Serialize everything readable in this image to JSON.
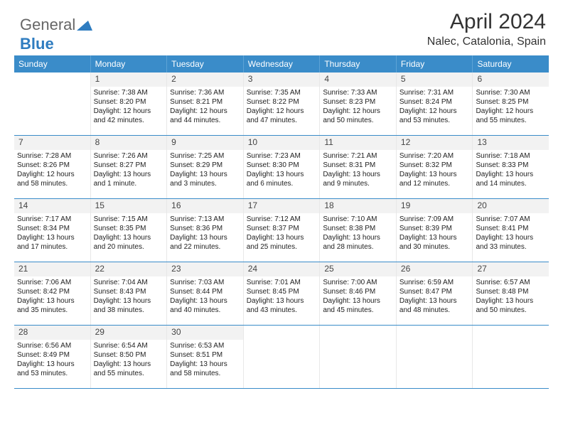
{
  "logo": {
    "part1": "General",
    "part2": "Blue"
  },
  "title": "April 2024",
  "location": "Nalec, Catalonia, Spain",
  "day_header_bg": "#3a8cc9",
  "day_header_fg": "#ffffff",
  "divider_color": "#3a8cc9",
  "days": [
    "Sunday",
    "Monday",
    "Tuesday",
    "Wednesday",
    "Thursday",
    "Friday",
    "Saturday"
  ],
  "weeks": [
    [
      null,
      {
        "n": "1",
        "sr": "Sunrise: 7:38 AM",
        "ss": "Sunset: 8:20 PM",
        "dl": "Daylight: 12 hours and 42 minutes."
      },
      {
        "n": "2",
        "sr": "Sunrise: 7:36 AM",
        "ss": "Sunset: 8:21 PM",
        "dl": "Daylight: 12 hours and 44 minutes."
      },
      {
        "n": "3",
        "sr": "Sunrise: 7:35 AM",
        "ss": "Sunset: 8:22 PM",
        "dl": "Daylight: 12 hours and 47 minutes."
      },
      {
        "n": "4",
        "sr": "Sunrise: 7:33 AM",
        "ss": "Sunset: 8:23 PM",
        "dl": "Daylight: 12 hours and 50 minutes."
      },
      {
        "n": "5",
        "sr": "Sunrise: 7:31 AM",
        "ss": "Sunset: 8:24 PM",
        "dl": "Daylight: 12 hours and 53 minutes."
      },
      {
        "n": "6",
        "sr": "Sunrise: 7:30 AM",
        "ss": "Sunset: 8:25 PM",
        "dl": "Daylight: 12 hours and 55 minutes."
      }
    ],
    [
      {
        "n": "7",
        "sr": "Sunrise: 7:28 AM",
        "ss": "Sunset: 8:26 PM",
        "dl": "Daylight: 12 hours and 58 minutes."
      },
      {
        "n": "8",
        "sr": "Sunrise: 7:26 AM",
        "ss": "Sunset: 8:27 PM",
        "dl": "Daylight: 13 hours and 1 minute."
      },
      {
        "n": "9",
        "sr": "Sunrise: 7:25 AM",
        "ss": "Sunset: 8:29 PM",
        "dl": "Daylight: 13 hours and 3 minutes."
      },
      {
        "n": "10",
        "sr": "Sunrise: 7:23 AM",
        "ss": "Sunset: 8:30 PM",
        "dl": "Daylight: 13 hours and 6 minutes."
      },
      {
        "n": "11",
        "sr": "Sunrise: 7:21 AM",
        "ss": "Sunset: 8:31 PM",
        "dl": "Daylight: 13 hours and 9 minutes."
      },
      {
        "n": "12",
        "sr": "Sunrise: 7:20 AM",
        "ss": "Sunset: 8:32 PM",
        "dl": "Daylight: 13 hours and 12 minutes."
      },
      {
        "n": "13",
        "sr": "Sunrise: 7:18 AM",
        "ss": "Sunset: 8:33 PM",
        "dl": "Daylight: 13 hours and 14 minutes."
      }
    ],
    [
      {
        "n": "14",
        "sr": "Sunrise: 7:17 AM",
        "ss": "Sunset: 8:34 PM",
        "dl": "Daylight: 13 hours and 17 minutes."
      },
      {
        "n": "15",
        "sr": "Sunrise: 7:15 AM",
        "ss": "Sunset: 8:35 PM",
        "dl": "Daylight: 13 hours and 20 minutes."
      },
      {
        "n": "16",
        "sr": "Sunrise: 7:13 AM",
        "ss": "Sunset: 8:36 PM",
        "dl": "Daylight: 13 hours and 22 minutes."
      },
      {
        "n": "17",
        "sr": "Sunrise: 7:12 AM",
        "ss": "Sunset: 8:37 PM",
        "dl": "Daylight: 13 hours and 25 minutes."
      },
      {
        "n": "18",
        "sr": "Sunrise: 7:10 AM",
        "ss": "Sunset: 8:38 PM",
        "dl": "Daylight: 13 hours and 28 minutes."
      },
      {
        "n": "19",
        "sr": "Sunrise: 7:09 AM",
        "ss": "Sunset: 8:39 PM",
        "dl": "Daylight: 13 hours and 30 minutes."
      },
      {
        "n": "20",
        "sr": "Sunrise: 7:07 AM",
        "ss": "Sunset: 8:41 PM",
        "dl": "Daylight: 13 hours and 33 minutes."
      }
    ],
    [
      {
        "n": "21",
        "sr": "Sunrise: 7:06 AM",
        "ss": "Sunset: 8:42 PM",
        "dl": "Daylight: 13 hours and 35 minutes."
      },
      {
        "n": "22",
        "sr": "Sunrise: 7:04 AM",
        "ss": "Sunset: 8:43 PM",
        "dl": "Daylight: 13 hours and 38 minutes."
      },
      {
        "n": "23",
        "sr": "Sunrise: 7:03 AM",
        "ss": "Sunset: 8:44 PM",
        "dl": "Daylight: 13 hours and 40 minutes."
      },
      {
        "n": "24",
        "sr": "Sunrise: 7:01 AM",
        "ss": "Sunset: 8:45 PM",
        "dl": "Daylight: 13 hours and 43 minutes."
      },
      {
        "n": "25",
        "sr": "Sunrise: 7:00 AM",
        "ss": "Sunset: 8:46 PM",
        "dl": "Daylight: 13 hours and 45 minutes."
      },
      {
        "n": "26",
        "sr": "Sunrise: 6:59 AM",
        "ss": "Sunset: 8:47 PM",
        "dl": "Daylight: 13 hours and 48 minutes."
      },
      {
        "n": "27",
        "sr": "Sunrise: 6:57 AM",
        "ss": "Sunset: 8:48 PM",
        "dl": "Daylight: 13 hours and 50 minutes."
      }
    ],
    [
      {
        "n": "28",
        "sr": "Sunrise: 6:56 AM",
        "ss": "Sunset: 8:49 PM",
        "dl": "Daylight: 13 hours and 53 minutes."
      },
      {
        "n": "29",
        "sr": "Sunrise: 6:54 AM",
        "ss": "Sunset: 8:50 PM",
        "dl": "Daylight: 13 hours and 55 minutes."
      },
      {
        "n": "30",
        "sr": "Sunrise: 6:53 AM",
        "ss": "Sunset: 8:51 PM",
        "dl": "Daylight: 13 hours and 58 minutes."
      },
      null,
      null,
      null,
      null
    ]
  ]
}
